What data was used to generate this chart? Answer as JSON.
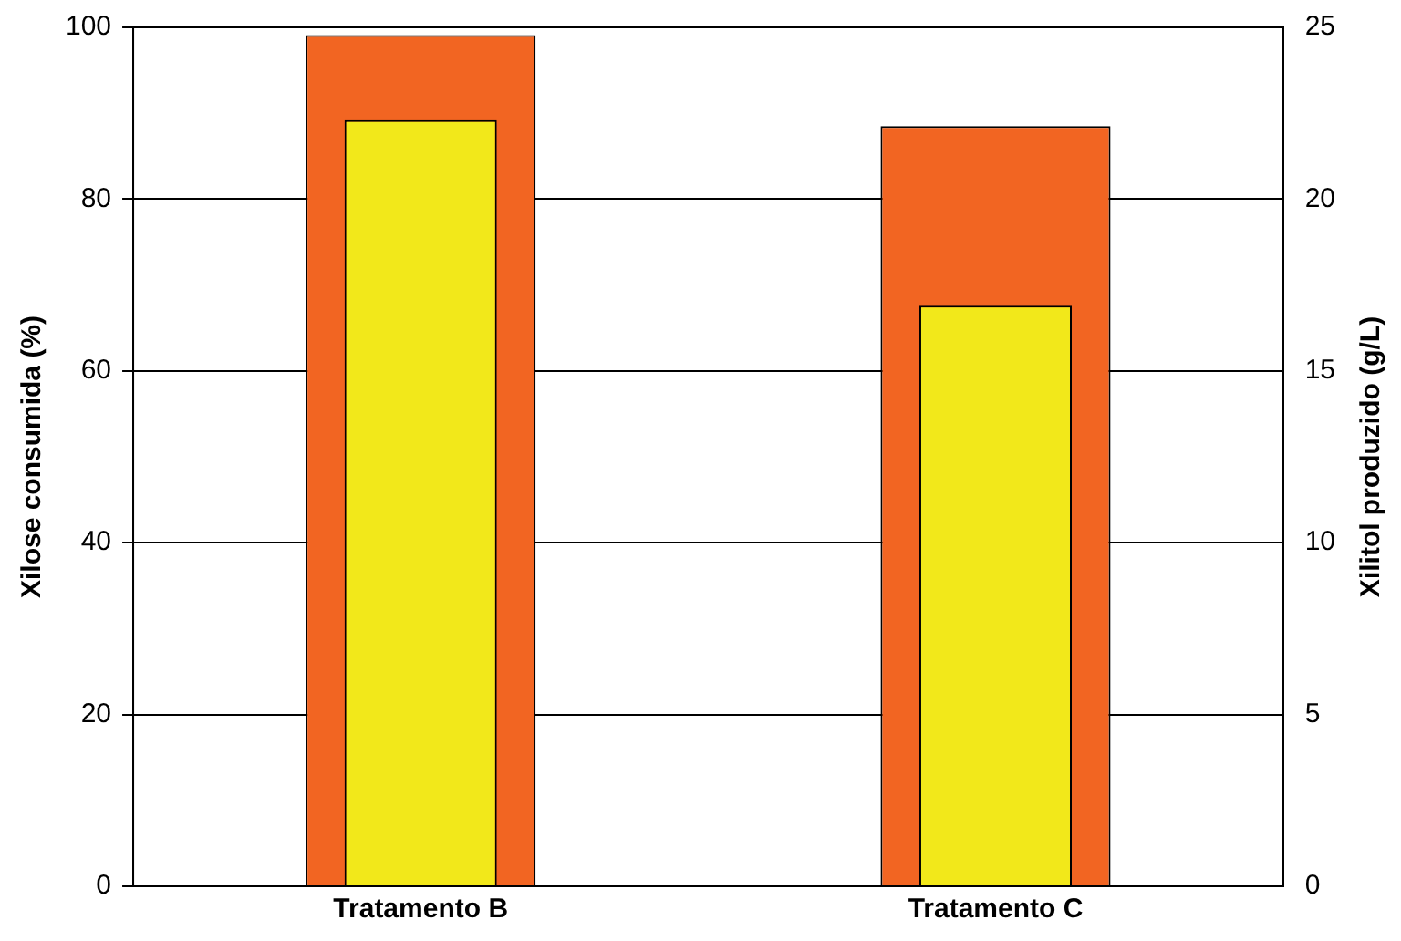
{
  "chart_data": {
    "type": "bar",
    "categories": [
      "Tratamento B",
      "Tratamento C"
    ],
    "series": [
      {
        "color": "#f26522",
        "values": [
          99.1,
          88.5
        ]
      },
      {
        "color": "#f2e81a",
        "values": [
          22.3,
          16.9
        ],
        "axis": "y2"
      }
    ],
    "ylabel": "Xilose consumida (%)",
    "y2label": "Xilitol produzido (g/L)",
    "ylim": [
      0,
      100
    ],
    "yticks": [
      0,
      20,
      40,
      60,
      80,
      100
    ],
    "y2lim": [
      0,
      25
    ],
    "y2ticks": [
      0,
      5,
      10,
      15,
      20,
      25
    ],
    "grid": "y"
  }
}
